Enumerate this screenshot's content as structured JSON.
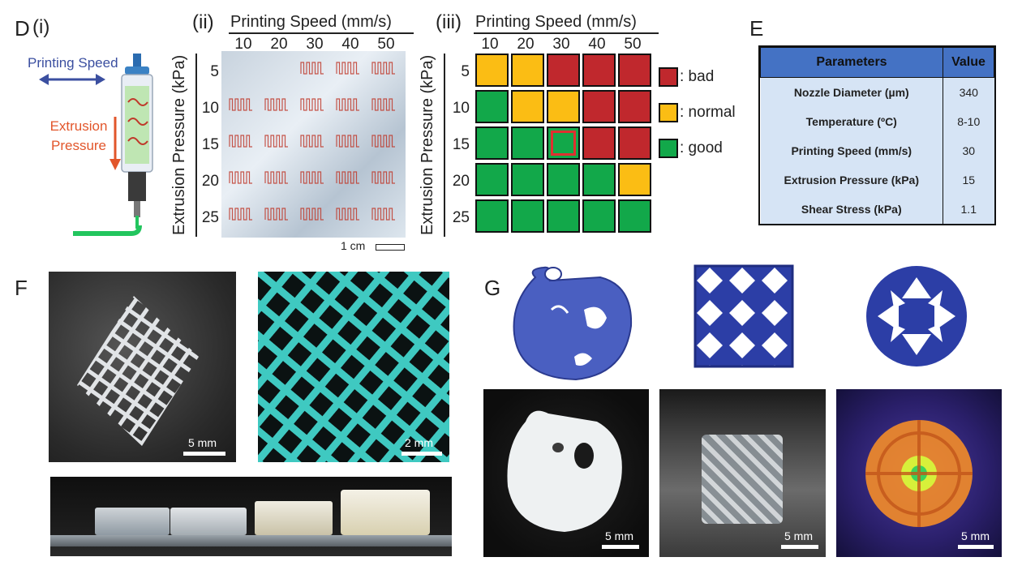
{
  "panel_d": {
    "letter": "D",
    "sub_i": "(i)",
    "sub_ii": "(ii)",
    "sub_iii": "(iii)",
    "printing_speed_label": "Printing Speed",
    "extrusion_pressure_label": "Extrusion Pressure",
    "x_axis_title": "Printing Speed (mm/s)",
    "y_axis_title": "Extrusion Pressure (kPa)",
    "speeds": [
      "10",
      "20",
      "30",
      "40",
      "50"
    ],
    "pressures": [
      "5",
      "10",
      "15",
      "20",
      "25"
    ],
    "scale_label": "1 cm"
  },
  "chart_data": {
    "type": "heatmap",
    "x": [
      "10",
      "20",
      "30",
      "40",
      "50"
    ],
    "y": [
      "5",
      "10",
      "15",
      "20",
      "25"
    ],
    "xlabel": "Printing Speed (mm/s)",
    "ylabel": "Extrusion Pressure (kPa)",
    "values": [
      [
        "normal",
        "normal",
        "bad",
        "bad",
        "bad"
      ],
      [
        "good",
        "normal",
        "normal",
        "bad",
        "bad"
      ],
      [
        "good",
        "good",
        "good",
        "bad",
        "bad"
      ],
      [
        "good",
        "good",
        "good",
        "good",
        "normal"
      ],
      [
        "good",
        "good",
        "good",
        "good",
        "good"
      ]
    ],
    "highlight": {
      "speed": "30",
      "pressure": "15"
    },
    "legend": [
      {
        "key": "bad",
        "label": ": bad",
        "color": "#c0282d"
      },
      {
        "key": "normal",
        "label": ": normal",
        "color": "#fbbd14"
      },
      {
        "key": "good",
        "label": ": good",
        "color": "#12a84a"
      }
    ],
    "highlight_color": "#e03030"
  },
  "panel_e": {
    "letter": "E",
    "header_param": "Parameters",
    "header_value": "Value",
    "rows": [
      {
        "param": "Nozzle Diameter (µm)",
        "value": "340"
      },
      {
        "param": "Temperature (ºC)",
        "value": "8-10"
      },
      {
        "param": "Printing Speed (mm/s)",
        "value": "30"
      },
      {
        "param": "Extrusion Pressure (kPa)",
        "value": "15"
      },
      {
        "param": "Shear Stress (kPa)",
        "value": "1.1"
      }
    ]
  },
  "panel_f": {
    "letter": "F",
    "scale_5mm": "5 mm",
    "scale_2mm": "2 mm"
  },
  "panel_g": {
    "letter": "G",
    "scale_1": "5 mm",
    "scale_2": "5 mm",
    "scale_3": "5 mm"
  }
}
